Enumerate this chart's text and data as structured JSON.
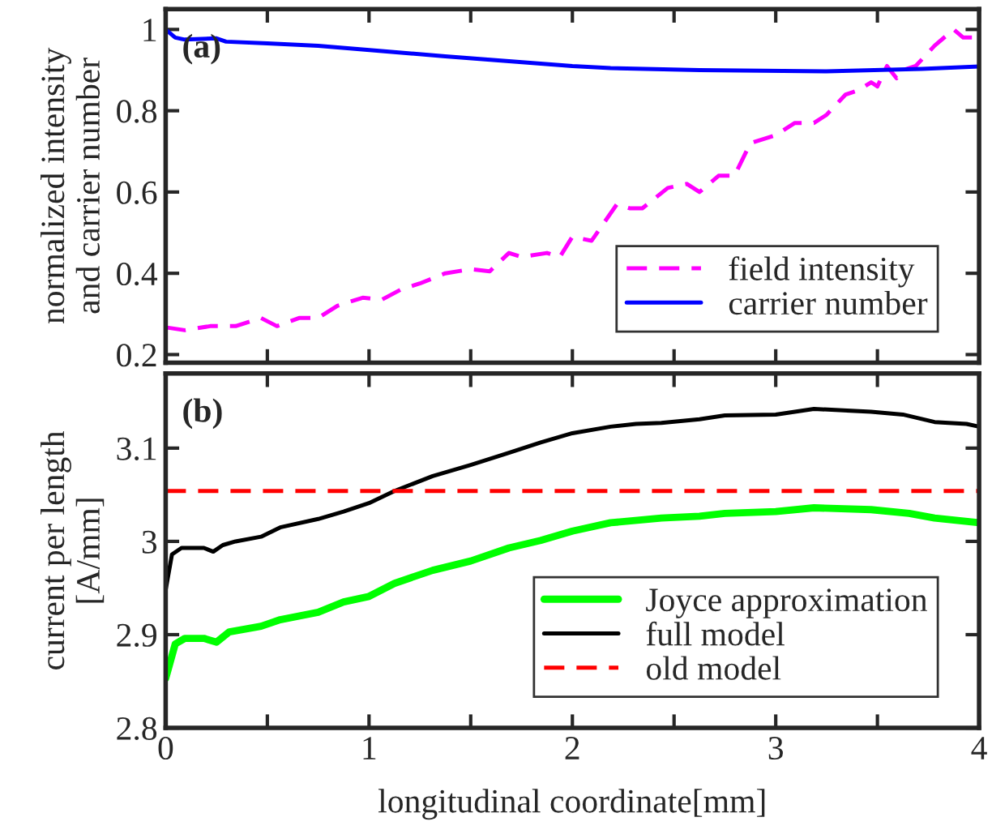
{
  "chart_data": [
    {
      "type": "line",
      "ylabel": "normalized intensity\nand carrier number",
      "annotations": [
        "(a)"
      ],
      "xlim": [
        0,
        4
      ],
      "xticks": [
        {
          "value": 0,
          "label": null
        },
        {
          "value": 0.5,
          "label": null
        },
        {
          "value": 1,
          "label": null
        },
        {
          "value": 1.5,
          "label": null
        },
        {
          "value": 2,
          "label": null
        },
        {
          "value": 2.5,
          "label": null
        },
        {
          "value": 3,
          "label": null
        },
        {
          "value": 3.5,
          "label": null
        },
        {
          "value": 4,
          "label": null
        }
      ],
      "ylim": [
        0.18,
        1.05
      ],
      "yticks": [
        0.2,
        0.4,
        0.6,
        0.8,
        1
      ],
      "tick_labels": "y",
      "legend": "lower right",
      "grid": false,
      "series": [
        {
          "name": "field intensity",
          "color": "#ff00ff",
          "line_style": "dashed",
          "x": [
            0,
            0.094,
            0.219,
            0.344,
            0.469,
            0.547,
            0.656,
            0.75,
            0.844,
            0.969,
            1.063,
            1.156,
            1.25,
            1.375,
            1.5,
            1.594,
            1.688,
            1.75,
            1.875,
            1.938,
            2.0,
            2.094,
            2.219,
            2.281,
            2.344,
            2.469,
            2.563,
            2.625,
            2.719,
            2.797,
            2.875,
            3.0,
            3.094,
            3.188,
            3.25,
            3.344,
            3.406,
            3.469,
            3.5,
            3.547,
            3.594,
            3.625,
            3.688,
            3.781,
            3.875,
            3.922,
            3.969,
            4.0
          ],
          "values": [
            0.267,
            0.26,
            0.27,
            0.27,
            0.29,
            0.27,
            0.29,
            0.29,
            0.32,
            0.34,
            0.335,
            0.36,
            0.375,
            0.4,
            0.41,
            0.405,
            0.45,
            0.44,
            0.45,
            0.44,
            0.49,
            0.48,
            0.57,
            0.56,
            0.56,
            0.61,
            0.62,
            0.6,
            0.64,
            0.64,
            0.72,
            0.74,
            0.77,
            0.77,
            0.79,
            0.84,
            0.85,
            0.87,
            0.86,
            0.91,
            0.88,
            0.9,
            0.91,
            0.96,
            1.0,
            0.98,
            0.98,
            0.99
          ]
        },
        {
          "name": "carrier number",
          "color": "#0000ff",
          "line_style": "solid",
          "x": [
            0,
            0.047,
            0.094,
            0.25,
            0.297,
            0.5,
            0.75,
            1.063,
            1.375,
            1.688,
            2.0,
            2.188,
            2.625,
            3.25,
            3.719,
            4.0
          ],
          "values": [
            1.0,
            0.98,
            0.975,
            0.978,
            0.97,
            0.966,
            0.96,
            0.947,
            0.934,
            0.922,
            0.91,
            0.905,
            0.9,
            0.897,
            0.903,
            0.909
          ]
        }
      ]
    },
    {
      "type": "line",
      "xlabel": "longitudinal coordinate[mm]",
      "ylabel": "current per length\n[A/mm]",
      "annotations": [
        "(b)"
      ],
      "xlim": [
        0,
        4
      ],
      "xticks": [
        0,
        {
          "value": 0.5,
          "label": null
        },
        1,
        {
          "value": 1.5,
          "label": null
        },
        2,
        {
          "value": 2.5,
          "label": null
        },
        3,
        {
          "value": 3.5,
          "label": null
        },
        4
      ],
      "ylim": [
        2.8,
        3.18
      ],
      "yticks": [
        2.8,
        2.9,
        3,
        3.1
      ],
      "legend": "lower right",
      "grid": false,
      "series": [
        {
          "name": "Joyce approximation",
          "color": "#00ff00",
          "line_style": "solid",
          "x": [
            0,
            0.047,
            0.094,
            0.188,
            0.25,
            0.313,
            0.469,
            0.563,
            0.75,
            0.875,
            1.0,
            1.125,
            1.313,
            1.5,
            1.688,
            1.844,
            2.0,
            2.188,
            2.438,
            2.625,
            2.75,
            3.0,
            3.188,
            3.469,
            3.656,
            3.781,
            4.0
          ],
          "values": [
            2.853,
            2.89,
            2.896,
            2.896,
            2.892,
            2.903,
            2.909,
            2.916,
            2.924,
            2.935,
            2.941,
            2.955,
            2.969,
            2.979,
            2.993,
            3.001,
            3.011,
            3.02,
            3.025,
            3.027,
            3.03,
            3.032,
            3.036,
            3.034,
            3.03,
            3.025,
            3.02
          ]
        },
        {
          "name": "full model",
          "color": "#000000",
          "line_style": "solid",
          "x": [
            0,
            0.031,
            0.078,
            0.188,
            0.234,
            0.281,
            0.344,
            0.469,
            0.563,
            0.75,
            0.875,
            1.0,
            1.125,
            1.313,
            1.5,
            1.688,
            1.844,
            2.0,
            2.188,
            2.313,
            2.438,
            2.625,
            2.75,
            3.0,
            3.188,
            3.469,
            3.625,
            3.781,
            3.938,
            4.0
          ],
          "values": [
            2.948,
            2.986,
            2.993,
            2.993,
            2.989,
            2.996,
            3.0,
            3.005,
            3.015,
            3.024,
            3.032,
            3.041,
            3.054,
            3.07,
            3.082,
            3.095,
            3.106,
            3.116,
            3.123,
            3.126,
            3.127,
            3.131,
            3.135,
            3.136,
            3.142,
            3.139,
            3.136,
            3.128,
            3.126,
            3.123
          ]
        },
        {
          "name": "old model",
          "color": "#ff0000",
          "line_style": "dashed",
          "x": [
            0,
            4
          ],
          "values": [
            3.054,
            3.054
          ]
        }
      ]
    }
  ]
}
